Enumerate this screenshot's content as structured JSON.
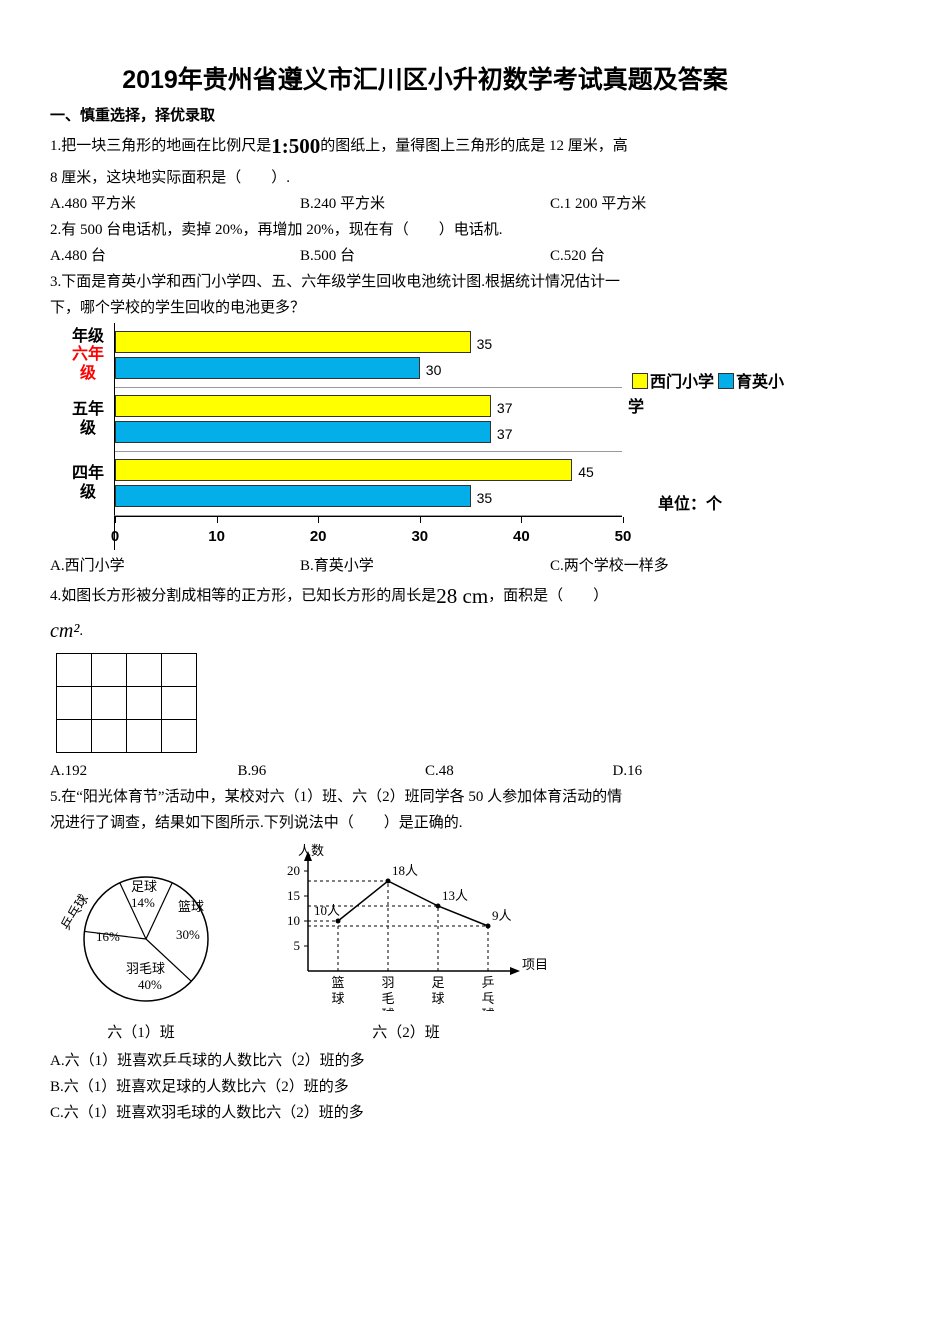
{
  "title": "2019年贵州省遵义市汇川区小升初数学考试真题及答案",
  "section1": "一、慎重选择，择优录取",
  "q1": {
    "pre": "1.把一块三角形的地画在比例尺是",
    "ratio": "1:500",
    "mid": "的图纸上，量得图上三角形的底是 12 厘米，高",
    "line2": "8 厘米，这块地实际面积是（　　）.",
    "a": "A.480 平方米",
    "b": "B.240 平方米",
    "c": "C.1 200 平方米"
  },
  "q2": {
    "text": "2.有 500 台电话机，卖掉 20%，再增加 20%，现在有（　　）电话机.",
    "a": "A.480 台",
    "b": "B.500 台",
    "c": "C.520 台"
  },
  "q3": {
    "l1": "3.下面是育英小学和西门小学四、五、六年级学生回收电池统计图.根据统计情况估计一",
    "l2": "下，哪个学校的学生回收的电池更多？",
    "a": "A.西门小学",
    "b": "B.育英小学",
    "c": "C.两个学校一样多"
  },
  "chart1": {
    "ylabel_top": "年级",
    "grades": [
      "六年级",
      "五年级",
      "四年级"
    ],
    "series": [
      {
        "name": "西门小学",
        "color": "#ffff00"
      },
      {
        "name": "育英小学",
        "color": "#04aee8"
      }
    ],
    "values": {
      "六年级": {
        "西门小学": 35,
        "育英小学": 30
      },
      "五年级": {
        "西门小学": 37,
        "育英小学": 37
      },
      "四年级": {
        "西门小学": 45,
        "育英小学": 35
      }
    },
    "xmax": 50,
    "xstep": 10,
    "unit": "单位：个",
    "legend_prefix": "口"
  },
  "q4": {
    "pre": "4.如图长方形被分割成相等的正方形，已知长方形的周长是",
    "val": "28 cm",
    "mid": "，面积是（　　）",
    "unit": "cm²",
    "tail": ".",
    "grid_cols": 4,
    "grid_rows": 3,
    "a": "A.192",
    "b": "B.96",
    "c": "C.48",
    "d": "D.16"
  },
  "q5": {
    "l1": "5.在“阳光体育节”活动中，某校对六（1）班、六（2）班同学各 50 人参加体育活动的情",
    "l2": "况进行了调查，结果如下图所示.下列说法中（　　）是正确的.",
    "a": "A.六（1）班喜欢乒乓球的人数比六（2）班的多",
    "b": "B.六（1）班喜欢足球的人数比六（2）班的多",
    "c": "C.六（1）班喜欢羽毛球的人数比六（2）班的多"
  },
  "pie": {
    "caption": "六（1）班",
    "slices": [
      {
        "label": "足球",
        "pct": 14,
        "angle_start": -115,
        "angle_end": -65
      },
      {
        "label": "篮球",
        "pct": 30,
        "angle_start": -65,
        "angle_end": 43
      },
      {
        "label": "羽毛球",
        "pct": 40,
        "angle_start": 43,
        "angle_end": 187
      },
      {
        "label": "乒乓球",
        "pct": 16,
        "angle_start": 187,
        "angle_end": 245
      }
    ],
    "border": "#000",
    "fill": "#fff",
    "fontsize": 13
  },
  "line": {
    "caption": "六（2）班",
    "ylabel": "人数",
    "xlabel": "项目",
    "categories": [
      "篮球",
      "羽毛球",
      "足球",
      "乒乓球"
    ],
    "points": [
      {
        "label": "10人",
        "y": 10
      },
      {
        "label": "18人",
        "y": 18
      },
      {
        "label": "13人",
        "y": 13
      },
      {
        "label": "9人",
        "y": 9
      }
    ],
    "ylim": [
      0,
      22
    ],
    "yticks": [
      5,
      10,
      15,
      20
    ],
    "axis_color": "#000",
    "line_color": "#000",
    "fontsize": 13
  }
}
